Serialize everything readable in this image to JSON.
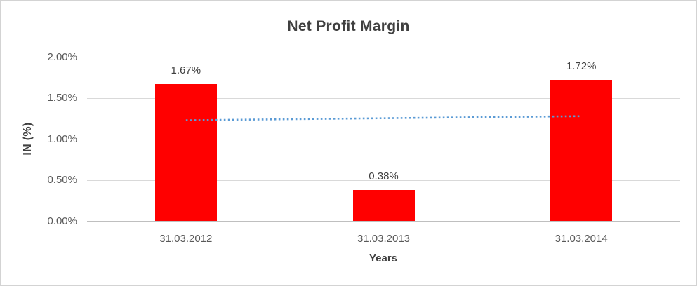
{
  "chart_data": {
    "type": "bar",
    "title": "Net Profit Margin",
    "xlabel": "Years",
    "ylabel": "IN (%)",
    "categories": [
      "31.03.2012",
      "31.03.2013",
      "31.03.2014"
    ],
    "values": [
      1.67,
      0.38,
      1.72
    ],
    "data_labels": [
      "1.67%",
      "0.38%",
      "1.72%"
    ],
    "ylim": [
      0,
      2.0
    ],
    "ytick_values": [
      0,
      0.5,
      1.0,
      1.5,
      2.0
    ],
    "ytick_labels": [
      "0.00%",
      "0.50%",
      "1.00%",
      "1.50%",
      "2.00%"
    ],
    "grid": true,
    "legend": false,
    "bar_color": "#ff0000",
    "trendline": {
      "type": "linear",
      "style": "dotted",
      "color": "#5b9bd5",
      "start_value": 1.23,
      "end_value": 1.28
    },
    "colors": {
      "title_text": "#404040",
      "label_text": "#404040",
      "axis_text": "#595959",
      "gridline": "#d9d9d9",
      "axis_line": "#bfbfbf"
    }
  }
}
